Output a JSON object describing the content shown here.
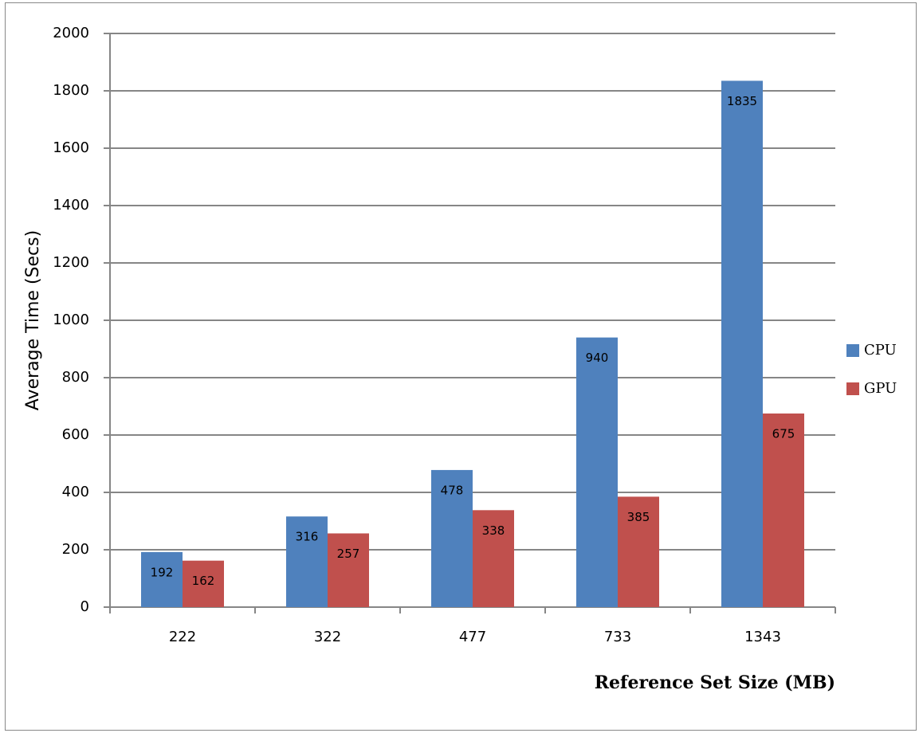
{
  "chart_data": {
    "type": "bar",
    "x_label": "Reference Set Size (MB)",
    "y_label": "Average Time (Secs)",
    "categories": [
      "222",
      "322",
      "477",
      "733",
      "1343"
    ],
    "series": [
      {
        "name": "CPU",
        "color": "#4f81bd",
        "values": [
          192,
          316,
          478,
          940,
          1835
        ]
      },
      {
        "name": "GPU",
        "color": "#c0504d",
        "values": [
          162,
          257,
          338,
          385,
          675
        ]
      }
    ],
    "ylim": [
      0,
      2000
    ],
    "yticks": [
      0,
      200,
      400,
      600,
      800,
      1000,
      1200,
      1400,
      1600,
      1800,
      2000
    ],
    "grid": true,
    "legend": "right",
    "data_labels": true
  }
}
